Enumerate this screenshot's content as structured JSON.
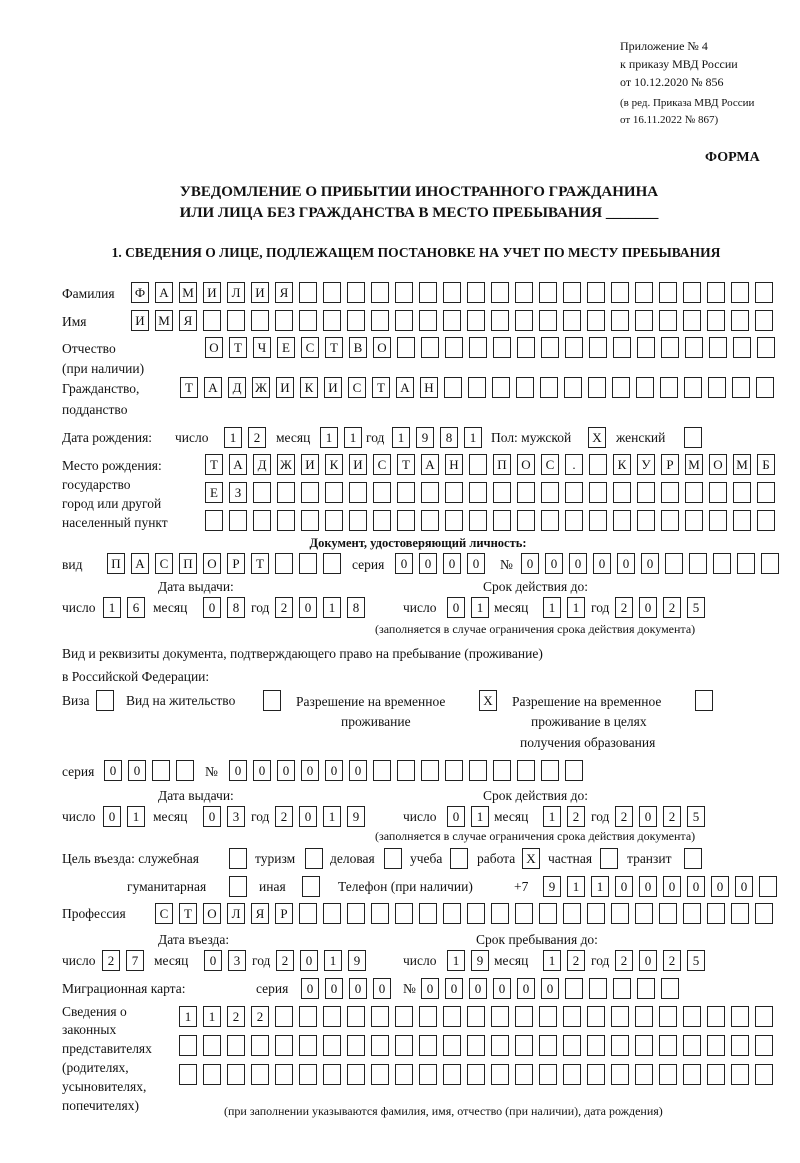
{
  "header": {
    "line1": "Приложение № 4",
    "line2": "к приказу МВД России",
    "line3": "от 10.12.2020 № 856",
    "line4": "(в ред. Приказа МВД России",
    "line5": "от 16.11.2022 № 867)",
    "forma": "ФОРМА",
    "title1": "УВЕДОМЛЕНИЕ О ПРИБЫТИИ ИНОСТРАННОГО ГРАЖДАНИНА",
    "title2": "ИЛИ ЛИЦА БЕЗ ГРАЖДАНСТВА В МЕСТО ПРЕБЫВАНИЯ _______",
    "section1": "1. СВЕДЕНИЯ О ЛИЦЕ, ПОДЛЕЖАЩЕМ ПОСТАНОВКЕ НА УЧЕТ ПО МЕСТУ ПРЕБЫВАНИЯ"
  },
  "labels": {
    "surname": "Фамилия",
    "name": "Имя",
    "patronymic1": "Отчество",
    "patronymic2": "(при наличии)",
    "citizenship1": "Гражданство,",
    "citizenship2": "подданство",
    "birth_date": "Дата рождения:",
    "day": "число",
    "month": "месяц",
    "year": "год",
    "sex": "Пол: мужской",
    "female": "женский",
    "birthplace1": "Место рождения:",
    "birthplace2": "государство",
    "birthplace3": "город или другой",
    "birthplace4": "населенный пункт",
    "id_doc": "Документ, удостоверяющий личность:",
    "kind": "вид",
    "series": "серия",
    "number": "№",
    "issue_date": "Дата выдачи:",
    "valid_until": "Срок действия до:",
    "validity_note": "(заполняется в случае ограничения срока действия документа)",
    "permit_doc1": "Вид и реквизиты документа, подтверждающего право на пребывание (проживание)",
    "permit_doc2": "в Российской Федерации:",
    "visa": "Виза",
    "residence": "Вид на жительство",
    "temp_res1": "Разрешение на временное",
    "temp_res2": "проживание",
    "temp_edu1": "Разрешение на временное",
    "temp_edu2": "проживание в целях",
    "temp_edu3": "получения образования",
    "purpose": "Цель въезда: служебная",
    "tourism": "туризм",
    "business": "деловая",
    "study": "учеба",
    "work": "работа",
    "private": "частная",
    "transit": "транзит",
    "humanitarian": "гуманитарная",
    "other": "иная",
    "phone": "Телефон (при наличии)",
    "phone_prefix": "+7",
    "profession": "Профессия",
    "entry_date": "Дата въезда:",
    "stay_until": "Срок пребывания до:",
    "migration_card": "Миграционная карта:",
    "reps1": "Сведения о",
    "reps2": "законных",
    "reps3": "представителях",
    "reps4": "(родителях,",
    "reps5": "усыновителях,",
    "reps6": "попечителях)",
    "reps_note": "(при заполнении указываются фамилия, имя, отчество (при наличии), дата рождения)"
  },
  "fields": {
    "surname": [
      "Ф",
      "А",
      "М",
      "И",
      "Л",
      "И",
      "Я"
    ],
    "name": [
      "И",
      "М",
      "Я"
    ],
    "patronymic": [
      "О",
      "Т",
      "Ч",
      "Е",
      "С",
      "Т",
      "В",
      "О"
    ],
    "citizenship": [
      "Т",
      "А",
      "Д",
      "Ж",
      "И",
      "К",
      "И",
      "С",
      "Т",
      "А",
      "Н"
    ],
    "birth_day": [
      "1",
      "2"
    ],
    "birth_month": [
      "1",
      "1"
    ],
    "birth_year": [
      "1",
      "9",
      "8",
      "1"
    ],
    "sex_male": [
      "X"
    ],
    "sex_female": [
      ""
    ],
    "birthplace_1": [
      "Т",
      "А",
      "Д",
      "Ж",
      "И",
      "К",
      "И",
      "С",
      "Т",
      "А",
      "Н",
      "",
      "П",
      "О",
      "С",
      ".",
      "",
      "К",
      "У",
      "Р",
      "М",
      "О",
      "М",
      "Б"
    ],
    "birthplace_2": [
      "Е",
      "З"
    ],
    "birthplace_3": [],
    "id_kind": [
      "П",
      "А",
      "С",
      "П",
      "О",
      "Р",
      "Т"
    ],
    "id_series": [
      "0",
      "0",
      "0",
      "0"
    ],
    "id_number": [
      "0",
      "0",
      "0",
      "0",
      "0",
      "0"
    ],
    "id_issue_day": [
      "1",
      "6"
    ],
    "id_issue_month": [
      "0",
      "8"
    ],
    "id_issue_year": [
      "2",
      "0",
      "1",
      "8"
    ],
    "id_valid_day": [
      "0",
      "1"
    ],
    "id_valid_month": [
      "1",
      "1"
    ],
    "id_valid_year": [
      "2",
      "0",
      "2",
      "5"
    ],
    "doc_visa": [
      ""
    ],
    "doc_residence": [
      ""
    ],
    "doc_temp_res": [
      "X"
    ],
    "doc_temp_edu": [
      ""
    ],
    "permit_series": [
      "0",
      "0"
    ],
    "permit_number": [
      "0",
      "0",
      "0",
      "0",
      "0",
      "0"
    ],
    "permit_issue_day": [
      "0",
      "1"
    ],
    "permit_issue_month": [
      "0",
      "3"
    ],
    "permit_issue_year": [
      "2",
      "0",
      "1",
      "9"
    ],
    "permit_valid_day": [
      "0",
      "1"
    ],
    "permit_valid_month": [
      "1",
      "2"
    ],
    "permit_valid_year": [
      "2",
      "0",
      "2",
      "5"
    ],
    "purpose_service": [
      ""
    ],
    "purpose_tourism": [
      ""
    ],
    "purpose_business": [
      ""
    ],
    "purpose_study": [
      ""
    ],
    "purpose_work": [
      "X"
    ],
    "purpose_private": [
      ""
    ],
    "purpose_transit": [
      ""
    ],
    "purpose_humanitarian": [
      ""
    ],
    "purpose_other": [
      ""
    ],
    "phone": [
      "9",
      "1",
      "1",
      "0",
      "0",
      "0",
      "0",
      "0",
      "0"
    ],
    "profession": [
      "С",
      "Т",
      "О",
      "Л",
      "Я",
      "Р"
    ],
    "entry_day": [
      "2",
      "7"
    ],
    "entry_month": [
      "0",
      "3"
    ],
    "entry_year": [
      "2",
      "0",
      "1",
      "9"
    ],
    "stay_day": [
      "1",
      "9"
    ],
    "stay_month": [
      "1",
      "2"
    ],
    "stay_year": [
      "2",
      "0",
      "2",
      "5"
    ],
    "mig_series": [
      "0",
      "0",
      "0",
      "0"
    ],
    "mig_number": [
      "0",
      "0",
      "0",
      "0",
      "0",
      "0"
    ],
    "reps_1": [
      "1",
      "1",
      "2",
      "2"
    ],
    "reps_2": [],
    "reps_3": []
  }
}
